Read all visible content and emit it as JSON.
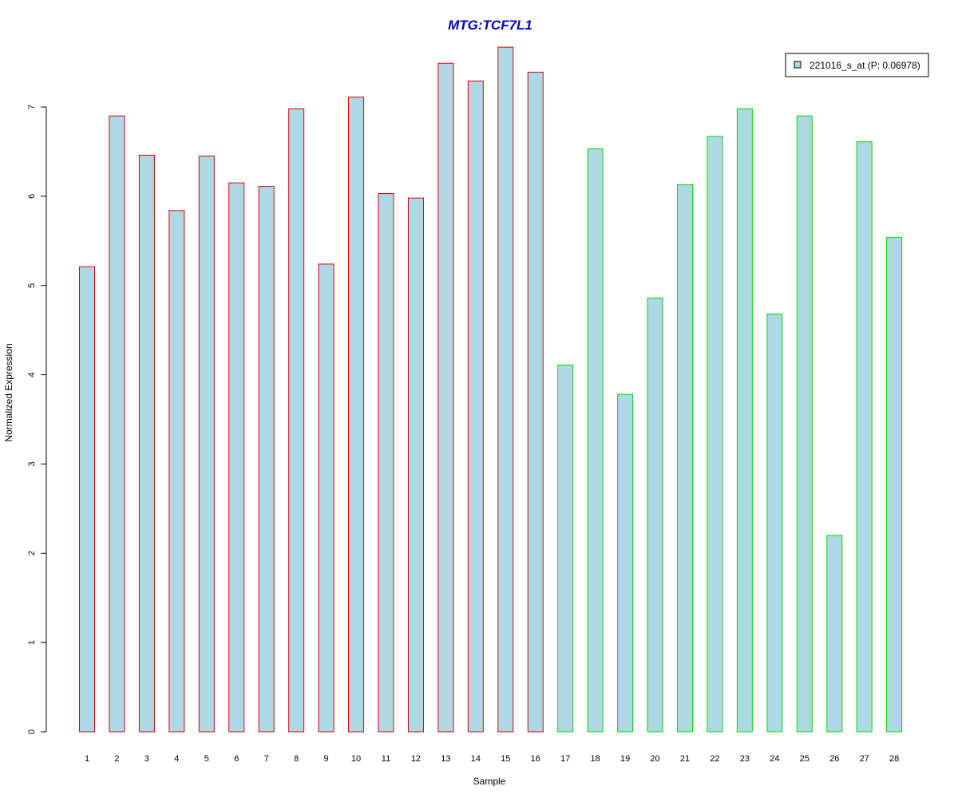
{
  "chart_data": {
    "type": "bar",
    "title": "MTG:TCF7L1",
    "xlabel": "Sample",
    "ylabel": "Normalized Expression",
    "categories": [
      "1",
      "2",
      "3",
      "4",
      "5",
      "6",
      "7",
      "8",
      "9",
      "10",
      "11",
      "12",
      "13",
      "14",
      "15",
      "16",
      "17",
      "18",
      "19",
      "20",
      "21",
      "22",
      "23",
      "24",
      "25",
      "26",
      "27",
      "28"
    ],
    "series": [
      {
        "name": "221016_s_at (P: 0.06978)",
        "values": [
          5.21,
          6.9,
          6.46,
          5.84,
          6.45,
          6.15,
          6.11,
          6.98,
          5.24,
          7.11,
          6.03,
          5.98,
          7.49,
          7.29,
          7.67,
          7.39,
          4.11,
          6.53,
          3.78,
          4.86,
          6.13,
          6.67,
          6.98,
          4.68,
          6.9,
          2.2,
          6.61,
          5.54
        ]
      }
    ],
    "groups": [
      {
        "samples": [
          "1",
          "2",
          "3",
          "4",
          "5",
          "6",
          "7",
          "8",
          "9",
          "10",
          "11",
          "12",
          "13",
          "14",
          "15",
          "16"
        ],
        "border_color": "#e00000"
      },
      {
        "samples": [
          "17",
          "18",
          "19",
          "20",
          "21",
          "22",
          "23",
          "24",
          "25",
          "26",
          "27",
          "28"
        ],
        "border_color": "#00dd00"
      }
    ],
    "yticks": [
      0,
      1,
      2,
      3,
      4,
      5,
      6,
      7
    ],
    "ylim": [
      0,
      7.9
    ],
    "grid": false,
    "legend_position": "top-right",
    "colors": {
      "title": "#0000cc",
      "bar_fill": "#add8e6",
      "axis": "#000000"
    }
  }
}
